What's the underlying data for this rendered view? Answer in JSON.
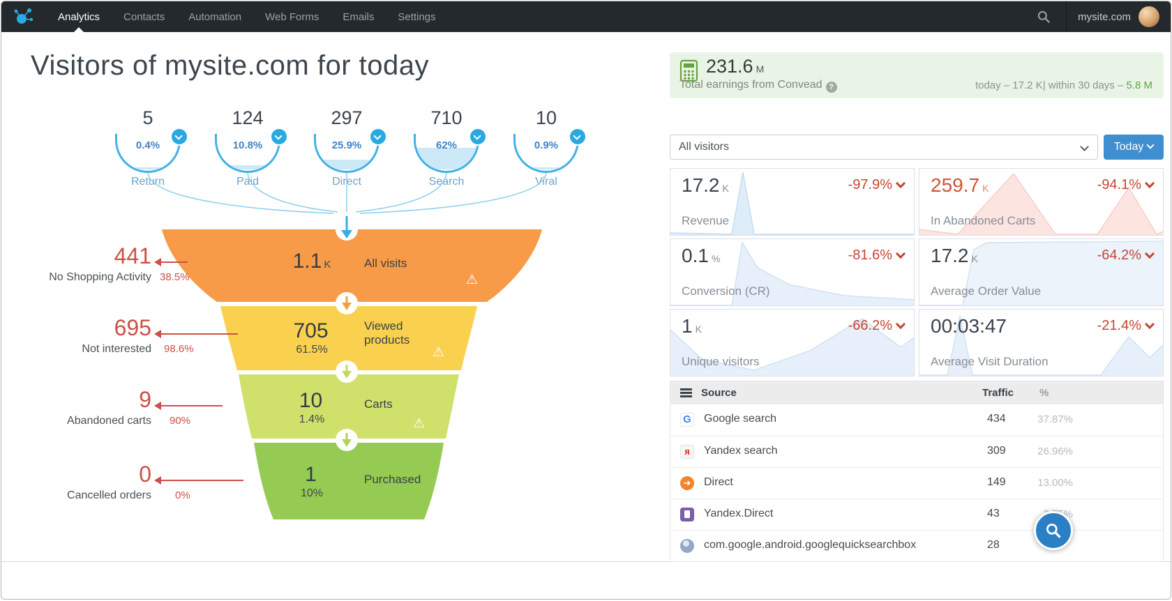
{
  "nav": {
    "brand": "Convead",
    "items": [
      {
        "label": "Analytics",
        "active": true
      },
      {
        "label": "Contacts",
        "active": false
      },
      {
        "label": "Automation",
        "active": false
      },
      {
        "label": "Web Forms",
        "active": false
      },
      {
        "label": "Emails",
        "active": false
      },
      {
        "label": "Settings",
        "active": false
      }
    ],
    "account": "mysite.com"
  },
  "title": "Visitors of mysite.com for today",
  "funnel": {
    "sources": [
      {
        "value": "5",
        "percent": "0.4%",
        "label": "Return",
        "fill_pct": 5
      },
      {
        "value": "124",
        "percent": "10.8%",
        "label": "Paid",
        "fill_pct": 11
      },
      {
        "value": "297",
        "percent": "25.9%",
        "label": "Direct",
        "fill_pct": 26
      },
      {
        "value": "710",
        "percent": "62%",
        "label": "Search",
        "fill_pct": 58
      },
      {
        "value": "10",
        "percent": "0.9%",
        "label": "Viral",
        "fill_pct": 5
      }
    ],
    "stages": [
      {
        "value": "1.1",
        "suffix": "K",
        "percent": "",
        "label": "All visits",
        "color": "#f79b49"
      },
      {
        "value": "705",
        "suffix": "",
        "percent": "61.5%",
        "label": "Viewed products",
        "color": "#fad14e"
      },
      {
        "value": "10",
        "suffix": "",
        "percent": "1.4%",
        "label": "Carts",
        "color": "#cfe06b"
      },
      {
        "value": "1",
        "suffix": "",
        "percent": "10%",
        "label": "Purchased",
        "color": "#95cb52"
      }
    ],
    "exits": [
      {
        "value": "441",
        "percent": "38.5%",
        "label": "No Shopping Activity"
      },
      {
        "value": "695",
        "percent": "98.6%",
        "label": "Not interested"
      },
      {
        "value": "9",
        "percent": "90%",
        "label": "Abandoned carts"
      },
      {
        "value": "0",
        "percent": "0%",
        "label": "Cancelled orders"
      }
    ]
  },
  "earnings": {
    "value": "231.6",
    "suffix": "M",
    "label": "Total earnings from Convead",
    "today": "today – 17.2 K",
    "sep": "| within 30 days – ",
    "period_value": "5.8 M"
  },
  "filters": {
    "visitors": "All visitors",
    "period": "Today"
  },
  "stats": [
    {
      "value": "17.2",
      "suffix": "K",
      "change": "-97.9%",
      "label": "Revenue"
    },
    {
      "value": "259.7",
      "suffix": "K",
      "change": "-94.1%",
      "label": "In Abandoned Carts"
    },
    {
      "value": "0.1",
      "suffix": "%",
      "change": "-81.6%",
      "label": "Conversion (CR)"
    },
    {
      "value": "17.2",
      "suffix": "K",
      "change": "-64.2%",
      "label": "Average Order Value"
    },
    {
      "value": "1",
      "suffix": "K",
      "change": "-66.2%",
      "label": "Unique visitors"
    },
    {
      "value": "00:03:47",
      "suffix": "",
      "change": "-21.4%",
      "label": "Average Visit Duration"
    }
  ],
  "sources_table": {
    "headers": {
      "source": "Source",
      "traffic": "Traffic",
      "percent": "%"
    },
    "rows": [
      {
        "icon": "google-icon",
        "name": "Google search",
        "traffic": "434",
        "percent": "37.87%"
      },
      {
        "icon": "yandex-icon",
        "name": "Yandex search",
        "traffic": "309",
        "percent": "26.96%"
      },
      {
        "icon": "direct-icon",
        "name": "Direct",
        "traffic": "149",
        "percent": "13.00%"
      },
      {
        "icon": "yandex-direct-icon",
        "name": "Yandex.Direct",
        "traffic": "43",
        "percent": "3.75%"
      },
      {
        "icon": "globe-icon",
        "name": "com.google.android.googlequicksearchbox",
        "traffic": "28",
        "percent": ""
      }
    ]
  },
  "colors": {
    "accent_blue": "#2aabe2",
    "button_blue": "#3e8ed0",
    "red": "#cd4f47",
    "green": "#61a345"
  }
}
